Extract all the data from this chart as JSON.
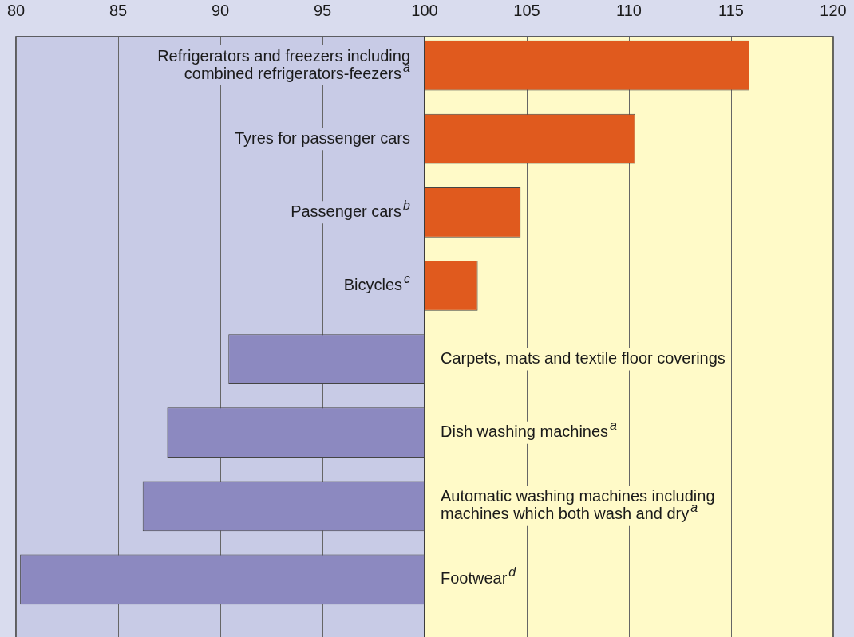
{
  "chart_data": {
    "type": "bar",
    "orientation": "horizontal",
    "categories": [
      "Refrigerators and freezers including\ncombined refrigerators-feezers$^{a}$",
      "Tyres for passenger cars",
      "Passenger cars$^{b}$",
      "Bicycles$^{c}$",
      "Carpets, mats and textile floor coverings",
      "Dish washing machines$^{a}$",
      "Automatic washing machines including\nmachines which both wash and dry$^{a}$",
      "Footwear$^{d}$"
    ],
    "base": [
      100,
      100,
      100,
      100,
      100,
      100,
      100,
      100
    ],
    "values": [
      15.9,
      10.3,
      4.7,
      2.6,
      -9.6,
      -12.6,
      -13.8,
      -19.8
    ],
    "colors": [
      "#e05a1e",
      "#e05a1e",
      "#e05a1e",
      "#e05a1e",
      "#8c89c0",
      "#8c89c0",
      "#8c89c0",
      "#8c89c0"
    ],
    "xlim": [
      80,
      120
    ],
    "xticks": [
      80,
      85,
      90,
      95,
      100,
      105,
      110,
      115,
      120
    ],
    "grid": "x",
    "tick_labels": "x",
    "legend": false,
    "bands": [
      {
        "axis": "x",
        "from": 80,
        "to": 100,
        "color": "#c8cbe6"
      },
      {
        "axis": "x",
        "from": 100,
        "to": 120,
        "color": "#fffac8"
      }
    ]
  }
}
